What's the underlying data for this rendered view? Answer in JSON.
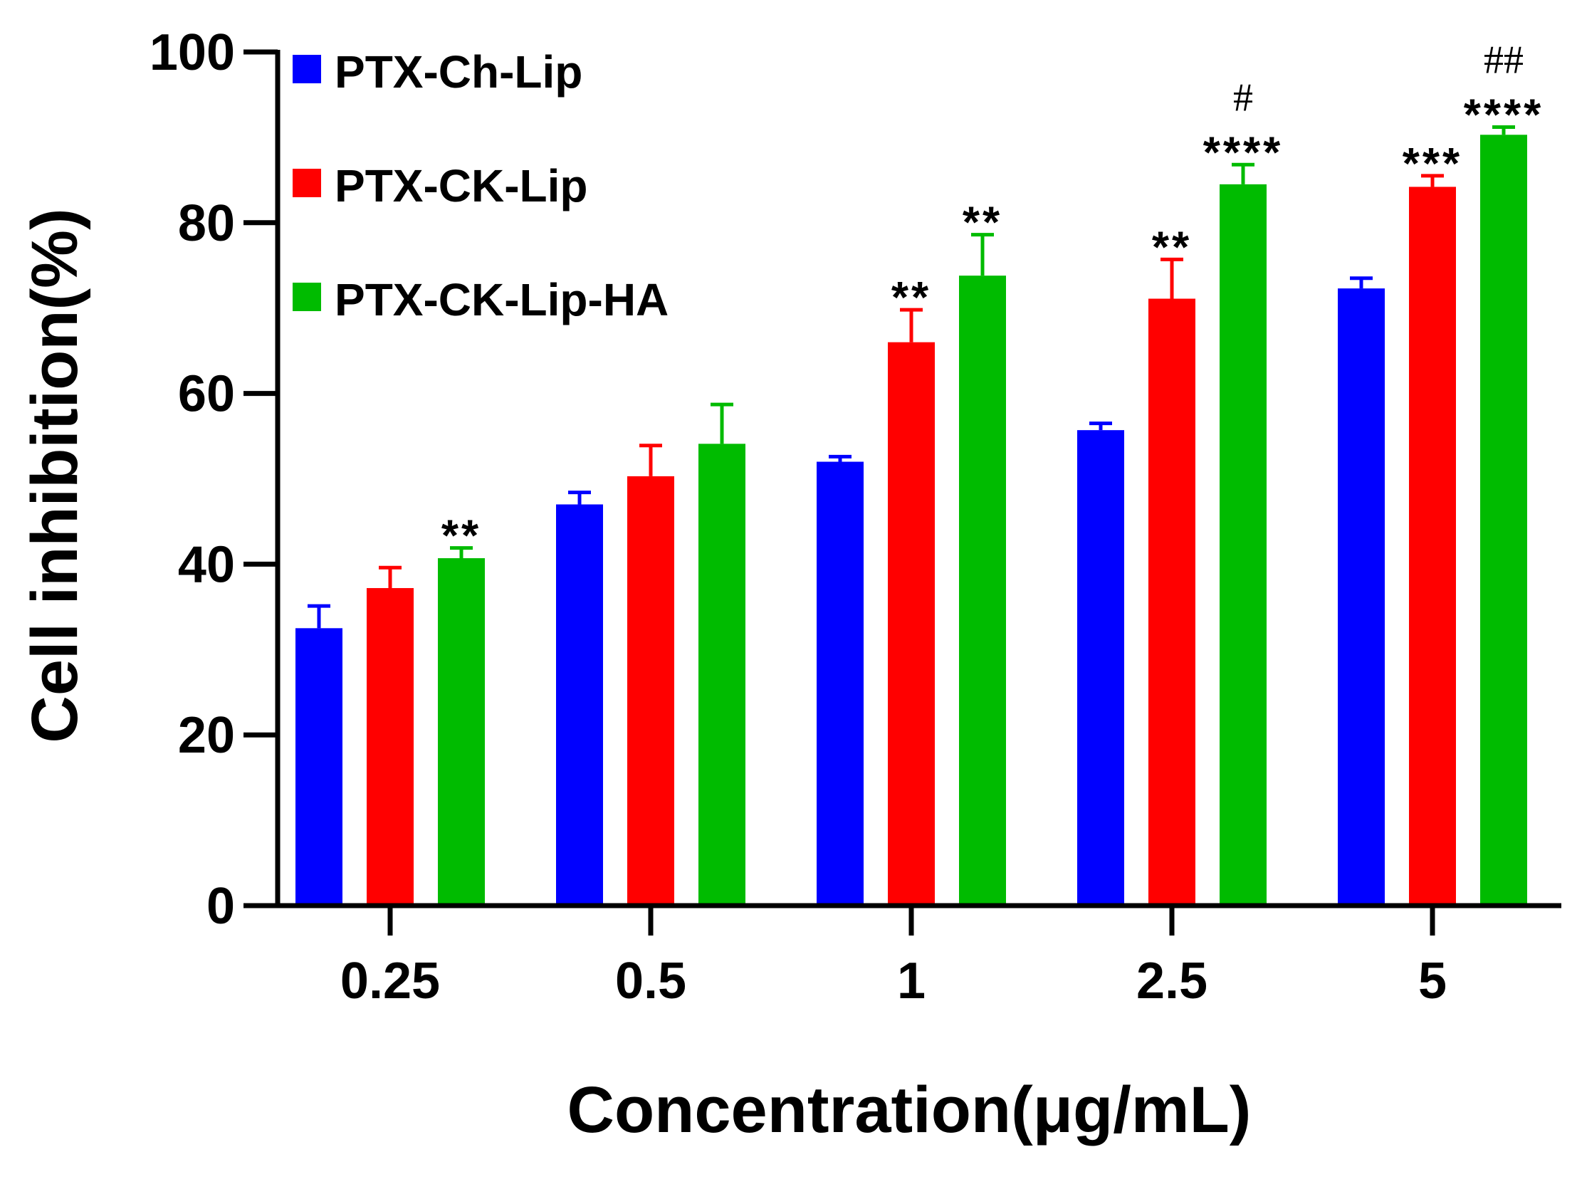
{
  "chart_data": {
    "type": "bar",
    "title": "",
    "xlabel": "Concentration(μg/mL)",
    "ylabel": "Cell inhibition(%)",
    "ylim": [
      0,
      100
    ],
    "yticks": [
      "0",
      "20",
      "40",
      "60",
      "80",
      "100"
    ],
    "categories": [
      "0.25",
      "0.5",
      "1",
      "2.5",
      "5"
    ],
    "legend_position": "top-left",
    "series": [
      {
        "name": "PTX-Ch-Lip",
        "color": "#0000ff",
        "values": [
          32.5,
          47.0,
          52.0,
          55.7,
          72.3
        ],
        "errors": [
          2.6,
          1.4,
          0.6,
          0.8,
          1.2
        ],
        "significance": [
          "",
          "",
          "",
          "",
          ""
        ],
        "hash": [
          "",
          "",
          "",
          "",
          ""
        ]
      },
      {
        "name": "PTX-CK-Lip",
        "color": "#ff0000",
        "values": [
          37.2,
          50.3,
          66.0,
          71.1,
          84.2
        ],
        "errors": [
          2.4,
          3.6,
          3.8,
          4.6,
          1.3
        ],
        "significance": [
          "",
          "",
          "**",
          "**",
          "***"
        ],
        "hash": [
          "",
          "",
          "",
          "",
          ""
        ]
      },
      {
        "name": "PTX-CK-Lip-HA",
        "color": "#00bb00",
        "values": [
          40.7,
          54.1,
          73.8,
          84.5,
          90.3
        ],
        "errors": [
          1.2,
          4.6,
          4.8,
          2.3,
          0.9
        ],
        "significance": [
          "**",
          "",
          "**",
          "****",
          "****"
        ],
        "hash": [
          "",
          "",
          "",
          "#",
          "##"
        ]
      }
    ]
  }
}
